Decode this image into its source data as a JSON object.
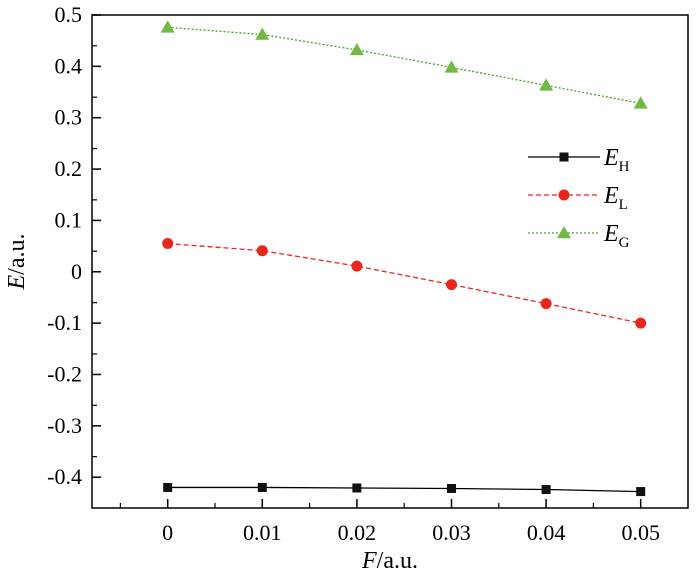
{
  "chart_data": {
    "type": "line",
    "x": [
      0,
      0.01,
      0.02,
      0.03,
      0.04,
      0.05
    ],
    "xlim": [
      -0.008,
      0.055
    ],
    "ylim": [
      -0.46,
      0.5
    ],
    "x_ticks": [
      0,
      0.01,
      0.02,
      0.03,
      0.04,
      0.05
    ],
    "x_tick_labels": [
      "0",
      "0.01",
      "0.02",
      "0.03",
      "0.04",
      "0.05"
    ],
    "y_ticks": [
      0.5,
      0.4,
      0.3,
      0.2,
      0.1,
      0,
      -0.1,
      -0.2,
      -0.3,
      -0.4
    ],
    "y_tick_labels": [
      "0.5",
      "0.4",
      "0.3",
      "0.2",
      "0.1",
      "0",
      "-0.1",
      "-0.2",
      "-0.3",
      "-0.4"
    ],
    "xlabel": {
      "var": "F",
      "unit": "/a.u."
    },
    "ylabel": {
      "var": "E",
      "unit": "/a.u."
    },
    "grid": false,
    "legend_position": "right",
    "series": [
      {
        "name_main": "E",
        "name_sub": "H",
        "marker": "square",
        "line": "solid",
        "color": "#000000",
        "marker_color": "#111111",
        "values": [
          -0.42,
          -0.42,
          -0.421,
          -0.422,
          -0.424,
          -0.428
        ]
      },
      {
        "name_main": "E",
        "name_sub": "L",
        "marker": "circle",
        "line": "dashed",
        "color": "#e8261c",
        "marker_color": "#e8261c",
        "values": [
          0.055,
          0.041,
          0.011,
          -0.025,
          -0.062,
          -0.1
        ]
      },
      {
        "name_main": "E",
        "name_sub": "G",
        "marker": "triangle",
        "line": "dotted",
        "color": "#4aa02c",
        "marker_color": "#72b944",
        "values": [
          0.476,
          0.462,
          0.432,
          0.398,
          0.363,
          0.328
        ]
      }
    ]
  }
}
